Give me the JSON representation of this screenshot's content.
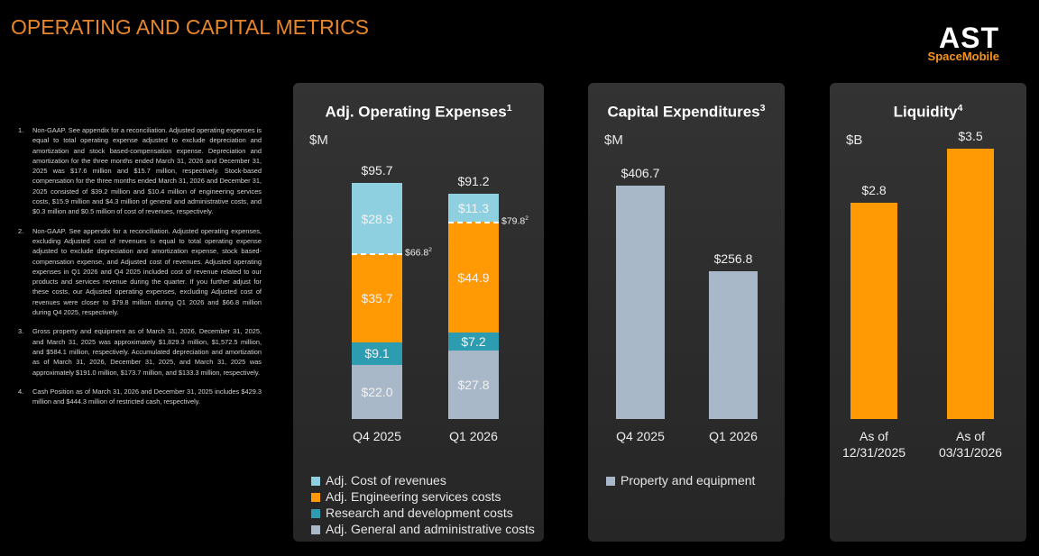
{
  "title": "OPERATING AND CAPITAL METRICS",
  "logo": {
    "name": "AST",
    "subtitle": "SpaceMobile"
  },
  "footnotes": [
    {
      "number": "1.",
      "text": "Non-GAAP. See appendix for a reconciliation. Adjusted operating expenses is equal to total operating expense adjusted to exclude depreciation and amortization and stock based-compensation expense. Depreciation and amortization for the three months ended March 31, 2026 and December 31, 2025 was $17.6 million and $15.7 million, respectively. Stock-based compensation for the three months ended March 31, 2026 and December 31, 2025 consisted of $39.2 million and $10.4 million of engineering services costs, $15.9 million and $4.3 million of general and administrative costs, and $0.3 million and $0.5 million of cost of revenues, respectively."
    },
    {
      "number": "2.",
      "text": "Non-GAAP. See appendix for a reconciliation. Adjusted operating expenses, excluding Adjusted cost of revenues is equal to total operating expense adjusted to exclude depreciation and amortization expense, stock based-compensation expense, and Adjusted cost of revenues. Adjusted operating expenses in Q1 2026 and Q4 2025 included cost of revenue related to our products and services revenue during the quarter. If you further adjust for these costs, our Adjusted operating expenses, excluding Adjusted cost of revenues were closer to $79.8 million during Q1 2026 and $66.8 million during Q4 2025, respectively."
    },
    {
      "number": "3.",
      "text": "Gross property and equipment as of March 31, 2026, December 31, 2025, and March 31, 2025 was approximately $1,829.3 million, $1,572.5 million, and $584.1 million, respectively. Accumulated depreciation and amortization as of March 31, 2026, December 31, 2025, and March 31, 2025 was approximately $191.0 million, $173.7 million, and $133.3 million, respectively."
    },
    {
      "number": "4.",
      "text": "Cash Position as of March 31, 2026 and December 31, 2025 includes $429.3 million and $444.3 million of restricted cash, respectively."
    }
  ],
  "chart_data": [
    {
      "type": "bar",
      "stacked": true,
      "title": "Adj. Operating Expenses",
      "title_note": "1",
      "unit": "$M",
      "categories": [
        "Q4 2025",
        "Q1 2026"
      ],
      "series": [
        {
          "name": "Adj. General and administrative costs",
          "color": "#a9b8c8",
          "values": [
            22.0,
            27.8
          ],
          "value_labels": [
            "$22.0",
            "$27.8"
          ]
        },
        {
          "name": "Research and development costs",
          "color": "#2e9cb0",
          "values": [
            9.1,
            7.2
          ],
          "value_labels": [
            "$9.1",
            "$7.2"
          ]
        },
        {
          "name": "Adj. Engineering services costs",
          "color": "#ff9a05",
          "values": [
            35.7,
            44.9
          ],
          "value_labels": [
            "$35.7",
            "$44.9"
          ]
        },
        {
          "name": "Adj. Cost of revenues",
          "color": "#8fd0e0",
          "values": [
            28.9,
            11.3
          ],
          "value_labels": [
            "$28.9",
            "$11.3"
          ]
        }
      ],
      "totals": {
        "values": [
          95.7,
          91.2
        ],
        "value_labels": [
          "$95.7",
          "$91.2"
        ]
      },
      "reference_lines": {
        "values": [
          66.8,
          79.8
        ],
        "value_labels": [
          "$66.8",
          "$79.8"
        ],
        "note": "2"
      }
    },
    {
      "type": "bar",
      "title": "Capital Expenditures",
      "title_note": "3",
      "unit": "$M",
      "categories": [
        "Q4 2025",
        "Q1 2026"
      ],
      "series": [
        {
          "name": "Property and equipment",
          "color": "#a9b8c8",
          "values": [
            406.7,
            256.8
          ],
          "value_labels": [
            "$406.7",
            "$256.8"
          ]
        }
      ]
    },
    {
      "type": "bar",
      "title": "Liquidity",
      "title_note": "4",
      "unit": "$B",
      "categories": [
        "As of 12/31/2025",
        "As of 03/31/2026"
      ],
      "values": [
        2.8,
        3.5
      ],
      "value_labels": [
        "$2.8",
        "$3.5"
      ],
      "color": "#ff9a05"
    }
  ]
}
